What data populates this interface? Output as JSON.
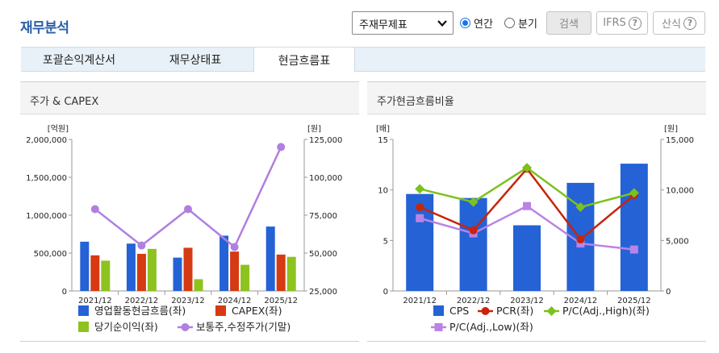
{
  "header": {
    "title": "재무분석",
    "select_value": "주재무제표",
    "radio_annual": "연간",
    "radio_quarter": "분기",
    "search_btn": "검색",
    "ifrs_btn": "IFRS",
    "formula_btn": "산식",
    "help_mark": "?"
  },
  "tabs": [
    "포괄손익계산서",
    "재무상태표",
    "현금흐름표"
  ],
  "panels": {
    "left_title": "주가 & CAPEX",
    "right_title": "주가현금흐름비율"
  },
  "colors": {
    "blue": "#2462d6",
    "red": "#d63a12",
    "green": "#8dc21f",
    "purple": "#b07fe0",
    "darkred": "#c8240a",
    "pc_high": "#7cc11c",
    "pc_low": "#b884e6"
  },
  "chart_data": [
    {
      "type": "bar",
      "title": "주가 & CAPEX",
      "ylabel_left": "[억원]",
      "ylabel_right": "[원]",
      "categories": [
        "2021/12",
        "2022/12",
        "2023/12",
        "2024/12",
        "2025/12"
      ],
      "ylim_left": [
        0,
        2000000
      ],
      "yticks_left": [
        "0",
        "500,000",
        "1,000,000",
        "1,500,000",
        "2,000,000"
      ],
      "ylim_right": [
        25000,
        125000
      ],
      "yticks_right": [
        "25,000",
        "50,000",
        "75,000",
        "100,000",
        "125,000"
      ],
      "series": [
        {
          "name": "영업활동현금흐름(좌)",
          "type": "bar",
          "axis": "left",
          "values": [
            650000,
            625000,
            440000,
            730000,
            850000
          ]
        },
        {
          "name": "CAPEX(좌)",
          "type": "bar",
          "axis": "left",
          "values": [
            470000,
            490000,
            570000,
            520000,
            480000
          ]
        },
        {
          "name": "당기순이익(좌)",
          "type": "bar",
          "axis": "left",
          "values": [
            400000,
            555000,
            155000,
            345000,
            450000
          ]
        },
        {
          "name": "보통주,수정주가(기말)",
          "type": "line",
          "axis": "right",
          "values": [
            79000,
            55000,
            79000,
            54000,
            120000
          ]
        }
      ]
    },
    {
      "type": "bar",
      "title": "주가현금흐름비율",
      "ylabel_left": "[배]",
      "ylabel_right": "[원]",
      "categories": [
        "2021/12",
        "2022/12",
        "2023/12",
        "2024/12",
        "2025/12"
      ],
      "ylim_left": [
        0,
        15
      ],
      "yticks_left": [
        "0",
        "5",
        "10",
        "15"
      ],
      "ylim_right": [
        0,
        15000
      ],
      "yticks_right": [
        "0",
        "5,000",
        "10,000",
        "15,000"
      ],
      "series": [
        {
          "name": "CPS",
          "type": "bar",
          "axis": "right",
          "values": [
            9600,
            9200,
            6500,
            10700,
            12600
          ]
        },
        {
          "name": "PCR(좌)",
          "type": "line",
          "axis": "left",
          "values": [
            8.3,
            6.0,
            12.1,
            5.1,
            9.5
          ]
        },
        {
          "name": "P/C(Adj.,High)(좌)",
          "type": "line",
          "axis": "left",
          "values": [
            10.1,
            8.8,
            12.2,
            8.3,
            9.7
          ]
        },
        {
          "name": "P/C(Adj.,Low)(좌)",
          "type": "line",
          "axis": "left",
          "values": [
            7.2,
            5.7,
            8.4,
            4.7,
            4.1
          ]
        }
      ]
    }
  ]
}
